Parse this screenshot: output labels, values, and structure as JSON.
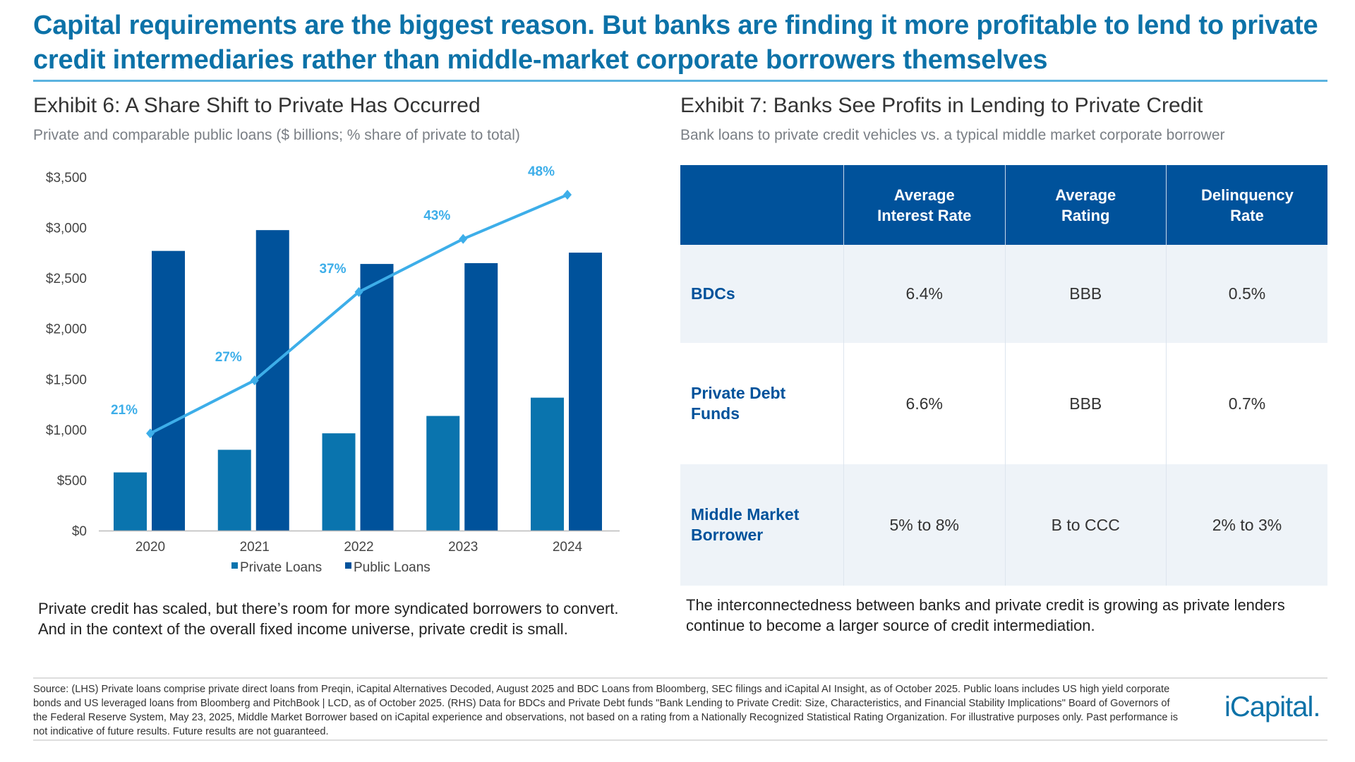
{
  "headline": "Capital requirements are the biggest reason. But banks are finding it more profitable to lend to private credit intermediaries rather than middle-market corporate borrowers themselves",
  "left": {
    "title": "Exhibit 6: A Share Shift to Private Has Occurred",
    "subtitle": "Private and comparable public loans ($ billions; % share of private to total)",
    "caption": "Private credit has scaled, but there’s room for more syndicated borrowers to convert. And in the context of the overall fixed income universe, private credit is small."
  },
  "chart_data": {
    "type": "bar",
    "title": "",
    "categories": [
      "2020",
      "2021",
      "2022",
      "2023",
      "2024"
    ],
    "series": [
      {
        "name": "Private Loans",
        "type": "bar",
        "color": "#0a74ae",
        "values": [
          576,
          800,
          963,
          1135,
          1316
        ]
      },
      {
        "name": "Public Loans",
        "type": "bar",
        "color": "#00529b",
        "values": [
          2769,
          2975,
          2640,
          2648,
          2752
        ]
      },
      {
        "type": "line",
        "axis": "secondary",
        "color": "#3daee9",
        "values": [
          21,
          27,
          37,
          43,
          48
        ],
        "labels": [
          "21%",
          "27%",
          "37%",
          "43%",
          "48%"
        ]
      }
    ],
    "ylim": [
      0,
      3500
    ],
    "y2lim": [
      10,
      50
    ],
    "yticks": [
      "$0",
      "$500",
      "$1,000",
      "$1,500",
      "$2,000",
      "$2,500",
      "$3,000",
      "$3,500"
    ],
    "ytick_values": [
      0,
      500,
      1000,
      1500,
      2000,
      2500,
      3000,
      3500
    ],
    "grid": false,
    "legend": "bottom"
  },
  "right": {
    "title": "Exhibit 7: Banks See Profits in Lending to Private Credit",
    "subtitle": "Bank loans to private credit vehicles vs. a typical middle market corporate borrower",
    "table": {
      "headers": [
        "",
        "Average Interest Rate",
        "Average Rating",
        "Delinquency Rate"
      ],
      "rows": [
        {
          "label": "BDCs",
          "cells": [
            "6.4%",
            "BBB",
            "0.5%"
          ]
        },
        {
          "label": "Private Debt Funds",
          "cells": [
            "6.6%",
            "BBB",
            "0.7%"
          ]
        },
        {
          "label": "Middle Market Borrower",
          "cells": [
            "5% to 8%",
            "B to CCC",
            "2% to 3%"
          ]
        }
      ]
    },
    "caption": "The interconnectedness between banks and private credit is growing as private lenders continue to become a larger source of credit intermediation."
  },
  "footer": {
    "source": "Source: (LHS) Private loans comprise private direct loans from Preqin, iCapital Alternatives Decoded, August 2025 and BDC Loans from Bloomberg, SEC filings and iCapital AI Insight, as of October 2025. Public loans includes US high yield corporate bonds and US leveraged loans from Bloomberg and PitchBook | LCD, as of October 2025. (RHS) Data for BDCs and Private Debt funds \"Bank Lending to Private Credit: Size, Characteristics, and Financial Stability Implications\"  Board of Governors of the Federal Reserve System, May 23, 2025, Middle Market Borrower based on iCapital experience and observations, not based on a rating from a Nationally Recognized Statistical Rating Organization. For illustrative purposes only. Past performance is not indicative of future results. Future results are not guaranteed.",
    "logo": "iCapital."
  }
}
